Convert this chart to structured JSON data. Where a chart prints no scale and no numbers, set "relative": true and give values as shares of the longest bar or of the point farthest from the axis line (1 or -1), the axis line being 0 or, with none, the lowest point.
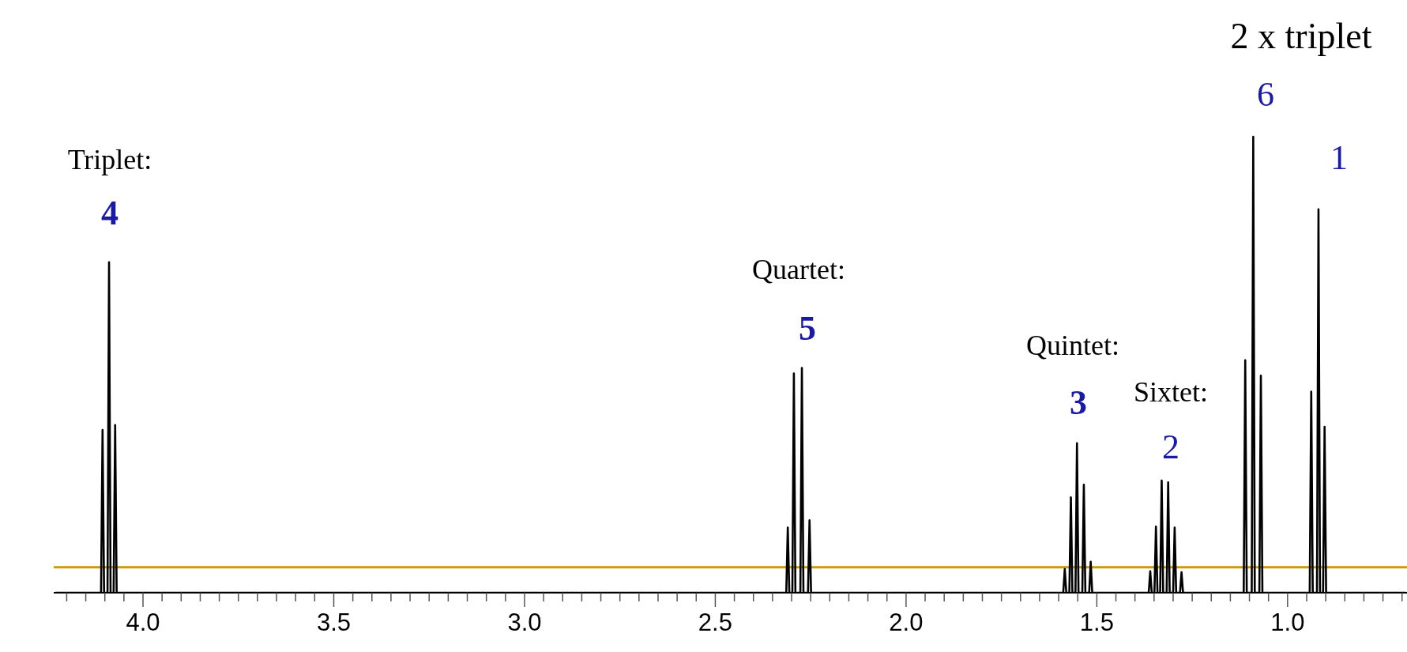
{
  "chart_data": {
    "type": "line",
    "relative": true,
    "x": [
      4.23,
      4.11,
      4.106,
      4.102,
      4.093,
      4.089,
      4.085,
      4.077,
      4.073,
      4.069,
      2.314,
      2.31,
      2.306,
      2.298,
      2.294,
      2.29,
      2.277,
      2.273,
      2.269,
      2.257,
      2.253,
      2.249,
      1.588,
      1.584,
      1.58,
      1.572,
      1.568,
      1.564,
      1.556,
      1.552,
      1.548,
      1.538,
      1.534,
      1.53,
      1.52,
      1.516,
      1.512,
      1.364,
      1.36,
      1.356,
      1.349,
      1.345,
      1.341,
      1.334,
      1.33,
      1.326,
      1.317,
      1.313,
      1.309,
      1.3,
      1.296,
      1.292,
      1.282,
      1.278,
      1.274,
      1.115,
      1.111,
      1.107,
      1.094,
      1.09,
      1.086,
      1.074,
      1.07,
      1.066,
      0.942,
      0.938,
      0.934,
      0.923,
      0.919,
      0.915,
      0.907,
      0.903,
      0.899,
      0.69
    ],
    "series": [
      {
        "color": "#000000",
        "values": [
          0,
          0,
          0.357,
          0,
          0,
          0.725,
          0,
          0,
          0.368,
          0,
          0,
          0.143,
          0,
          0,
          0.481,
          0,
          0,
          0.493,
          0,
          0,
          0.159,
          0,
          0,
          0.052,
          0,
          0,
          0.209,
          0,
          0,
          0.328,
          0,
          0,
          0.237,
          0,
          0,
          0.068,
          0,
          0,
          0.047,
          0,
          0,
          0.145,
          0,
          0,
          0.246,
          0,
          0,
          0.242,
          0,
          0,
          0.143,
          0,
          0,
          0.045,
          0,
          0,
          0.51,
          0,
          0,
          1,
          0,
          0,
          0.476,
          0,
          0,
          0.441,
          0,
          0,
          0.841,
          0,
          0,
          0.364,
          0,
          0
        ]
      }
    ],
    "xlim": [
      4.234,
      0.687
    ],
    "xticks": [
      {
        "value": 4.2,
        "label": null
      },
      {
        "value": 4.15,
        "label": null
      },
      {
        "value": 4.1,
        "label": null
      },
      {
        "value": 4.05,
        "label": null
      },
      {
        "value": 4.0,
        "label": "4.0"
      },
      {
        "value": 3.95,
        "label": null
      },
      {
        "value": 3.9,
        "label": null
      },
      {
        "value": 3.85,
        "label": null
      },
      {
        "value": 3.8,
        "label": null
      },
      {
        "value": 3.75,
        "label": null
      },
      {
        "value": 3.7,
        "label": null
      },
      {
        "value": 3.65,
        "label": null
      },
      {
        "value": 3.6,
        "label": null
      },
      {
        "value": 3.55,
        "label": null
      },
      {
        "value": 3.5,
        "label": "3.5"
      },
      {
        "value": 3.45,
        "label": null
      },
      {
        "value": 3.4,
        "label": null
      },
      {
        "value": 3.35,
        "label": null
      },
      {
        "value": 3.3,
        "label": null
      },
      {
        "value": 3.25,
        "label": null
      },
      {
        "value": 3.2,
        "label": null
      },
      {
        "value": 3.15,
        "label": null
      },
      {
        "value": 3.1,
        "label": null
      },
      {
        "value": 3.05,
        "label": null
      },
      {
        "value": 3.0,
        "label": "3.0"
      },
      {
        "value": 2.95,
        "label": null
      },
      {
        "value": 2.9,
        "label": null
      },
      {
        "value": 2.85,
        "label": null
      },
      {
        "value": 2.8,
        "label": null
      },
      {
        "value": 2.75,
        "label": null
      },
      {
        "value": 2.7,
        "label": null
      },
      {
        "value": 2.65,
        "label": null
      },
      {
        "value": 2.6,
        "label": null
      },
      {
        "value": 2.55,
        "label": null
      },
      {
        "value": 2.5,
        "label": "2.5"
      },
      {
        "value": 2.45,
        "label": null
      },
      {
        "value": 2.4,
        "label": null
      },
      {
        "value": 2.35,
        "label": null
      },
      {
        "value": 2.3,
        "label": null
      },
      {
        "value": 2.25,
        "label": null
      },
      {
        "value": 2.2,
        "label": null
      },
      {
        "value": 2.15,
        "label": null
      },
      {
        "value": 2.1,
        "label": null
      },
      {
        "value": 2.05,
        "label": null
      },
      {
        "value": 2.0,
        "label": "2.0"
      },
      {
        "value": 1.95,
        "label": null
      },
      {
        "value": 1.9,
        "label": null
      },
      {
        "value": 1.85,
        "label": null
      },
      {
        "value": 1.8,
        "label": null
      },
      {
        "value": 1.75,
        "label": null
      },
      {
        "value": 1.7,
        "label": null
      },
      {
        "value": 1.65,
        "label": null
      },
      {
        "value": 1.6,
        "label": null
      },
      {
        "value": 1.55,
        "label": null
      },
      {
        "value": 1.5,
        "label": "1.5"
      },
      {
        "value": 1.45,
        "label": null
      },
      {
        "value": 1.4,
        "label": null
      },
      {
        "value": 1.35,
        "label": null
      },
      {
        "value": 1.3,
        "label": null
      },
      {
        "value": 1.25,
        "label": null
      },
      {
        "value": 1.2,
        "label": null
      },
      {
        "value": 1.15,
        "label": null
      },
      {
        "value": 1.1,
        "label": null
      },
      {
        "value": 1.05,
        "label": null
      },
      {
        "value": 1.0,
        "label": "1.0"
      },
      {
        "value": 0.95,
        "label": null
      },
      {
        "value": 0.9,
        "label": null
      },
      {
        "value": 0.85,
        "label": null
      },
      {
        "value": 0.8,
        "label": null
      },
      {
        "value": 0.75,
        "label": null
      },
      {
        "value": 0.7,
        "label": null
      }
    ],
    "marker": "none",
    "line_style": "solid",
    "ref_lines": [
      {
        "axis": "y",
        "value": 0.056,
        "color": "#cc9a06"
      }
    ],
    "annotations": [
      "2 x triplet",
      "Triplet:",
      "4",
      "Quartet:",
      "5",
      "Quintet:",
      "3",
      "Sixtet:",
      "2",
      "6",
      "1"
    ]
  }
}
